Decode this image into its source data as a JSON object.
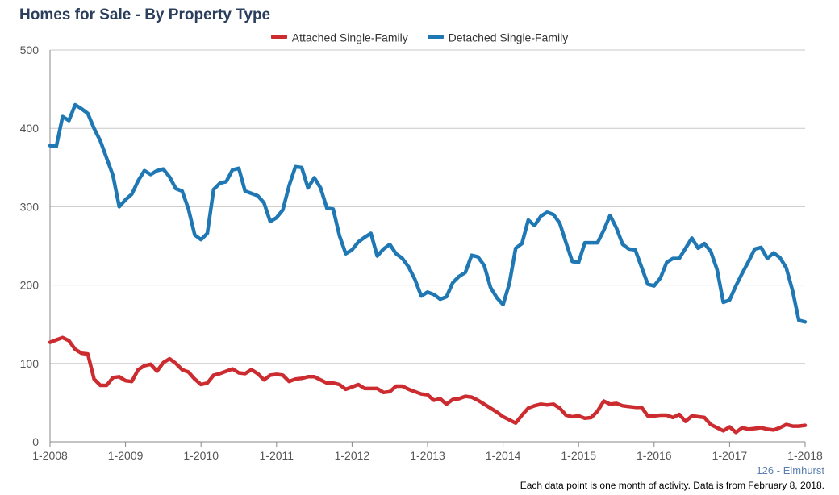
{
  "title": "Homes for Sale - By Property Type",
  "source_label": "126 - Elmhurst",
  "footnote": "Each data point is one month of activity. Data is from February 8, 2018.",
  "chart_data": {
    "type": "line",
    "title": "Homes for Sale - By Property Type",
    "xlabel": "",
    "ylabel": "",
    "ylim": [
      0,
      500
    ],
    "yticks": [
      0,
      100,
      200,
      300,
      400,
      500
    ],
    "xticks": [
      "1-2008",
      "1-2009",
      "1-2010",
      "1-2011",
      "1-2012",
      "1-2013",
      "1-2014",
      "1-2015",
      "1-2016",
      "1-2017",
      "1-2018"
    ],
    "grid": true,
    "legend_position": "top",
    "x": [
      "1-2008",
      "2-2008",
      "3-2008",
      "4-2008",
      "5-2008",
      "6-2008",
      "7-2008",
      "8-2008",
      "9-2008",
      "10-2008",
      "11-2008",
      "12-2008",
      "1-2009",
      "2-2009",
      "3-2009",
      "4-2009",
      "5-2009",
      "6-2009",
      "7-2009",
      "8-2009",
      "9-2009",
      "10-2009",
      "11-2009",
      "12-2009",
      "1-2010",
      "2-2010",
      "3-2010",
      "4-2010",
      "5-2010",
      "6-2010",
      "7-2010",
      "8-2010",
      "9-2010",
      "10-2010",
      "11-2010",
      "12-2010",
      "1-2011",
      "2-2011",
      "3-2011",
      "4-2011",
      "5-2011",
      "6-2011",
      "7-2011",
      "8-2011",
      "9-2011",
      "10-2011",
      "11-2011",
      "12-2011",
      "1-2012",
      "2-2012",
      "3-2012",
      "4-2012",
      "5-2012",
      "6-2012",
      "7-2012",
      "8-2012",
      "9-2012",
      "10-2012",
      "11-2012",
      "12-2012",
      "1-2013",
      "2-2013",
      "3-2013",
      "4-2013",
      "5-2013",
      "6-2013",
      "7-2013",
      "8-2013",
      "9-2013",
      "10-2013",
      "11-2013",
      "12-2013",
      "1-2014",
      "2-2014",
      "3-2014",
      "4-2014",
      "5-2014",
      "6-2014",
      "7-2014",
      "8-2014",
      "9-2014",
      "10-2014",
      "11-2014",
      "12-2014",
      "1-2015",
      "2-2015",
      "3-2015",
      "4-2015",
      "5-2015",
      "6-2015",
      "7-2015",
      "8-2015",
      "9-2015",
      "10-2015",
      "11-2015",
      "12-2015",
      "1-2016",
      "2-2016",
      "3-2016",
      "4-2016",
      "5-2016",
      "6-2016",
      "7-2016",
      "8-2016",
      "9-2016",
      "10-2016",
      "11-2016",
      "12-2016",
      "1-2017",
      "2-2017",
      "3-2017",
      "4-2017",
      "5-2017",
      "6-2017",
      "7-2017",
      "8-2017",
      "9-2017",
      "10-2017",
      "11-2017",
      "12-2017",
      "1-2018"
    ],
    "series": [
      {
        "name": "Attached Single-Family",
        "color": "#cc2b2f",
        "values": [
          127,
          130,
          133,
          129,
          118,
          113,
          112,
          80,
          72,
          72,
          82,
          83,
          78,
          77,
          92,
          97,
          99,
          90,
          101,
          106,
          100,
          92,
          89,
          80,
          73,
          75,
          85,
          87,
          90,
          93,
          88,
          87,
          92,
          87,
          79,
          85,
          86,
          85,
          77,
          80,
          81,
          83,
          83,
          79,
          75,
          75,
          73,
          67,
          70,
          73,
          68,
          68,
          68,
          63,
          64,
          71,
          71,
          67,
          64,
          61,
          60,
          53,
          55,
          48,
          54,
          55,
          58,
          57,
          53,
          48,
          43,
          38,
          32,
          28,
          24,
          34,
          43,
          46,
          48,
          47,
          48,
          43,
          34,
          32,
          33,
          30,
          31,
          39,
          52,
          48,
          49,
          46,
          45,
          44,
          44,
          33,
          33,
          34,
          34,
          31,
          35,
          26,
          33,
          32,
          31,
          22,
          18,
          14,
          19,
          12,
          18,
          16,
          17,
          18,
          16,
          15,
          18,
          22,
          20,
          20,
          21
        ]
      },
      {
        "name": "Detached Single-Family",
        "color": "#1f78b4",
        "values": [
          378,
          377,
          415,
          410,
          430,
          425,
          419,
          400,
          384,
          362,
          340,
          300,
          309,
          316,
          333,
          346,
          341,
          346,
          348,
          338,
          323,
          320,
          297,
          264,
          258,
          266,
          322,
          330,
          332,
          347,
          349,
          320,
          317,
          314,
          305,
          281,
          286,
          296,
          327,
          351,
          350,
          324,
          337,
          324,
          298,
          297,
          263,
          240,
          245,
          255,
          261,
          266,
          237,
          246,
          252,
          240,
          234,
          223,
          207,
          186,
          191,
          188,
          182,
          185,
          203,
          211,
          216,
          238,
          236,
          225,
          197,
          184,
          175,
          202,
          247,
          253,
          283,
          276,
          288,
          293,
          290,
          279,
          254,
          230,
          229,
          254,
          254,
          254,
          270,
          289,
          273,
          252,
          246,
          245,
          223,
          201,
          199,
          209,
          229,
          234,
          234,
          247,
          260,
          247,
          253,
          243,
          220,
          178,
          181,
          199,
          215,
          230,
          246,
          248,
          234,
          241,
          235,
          222,
          193,
          155,
          153
        ]
      }
    ]
  }
}
